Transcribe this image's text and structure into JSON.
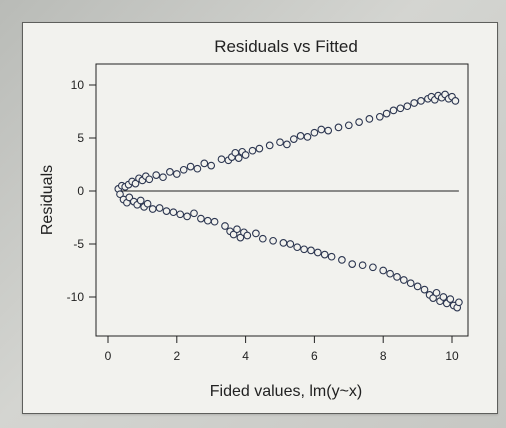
{
  "chart_data": {
    "type": "scatter",
    "title": "Residuals vs Fitted",
    "xlabel": "Fided values, lm(y~x)",
    "ylabel": "Residuals",
    "xlim": [
      0,
      10.5
    ],
    "ylim": [
      -12.5,
      12.5
    ],
    "xticks": [
      0,
      2,
      4,
      6,
      8,
      10
    ],
    "yticks": [
      10,
      5,
      0,
      -5,
      -10
    ],
    "reference_line": {
      "y": 0,
      "x_range": [
        0.3,
        10.2
      ]
    },
    "grid": false,
    "colors": {
      "marker_edge": "#2c3650",
      "marker_fill": "#f2f2ee",
      "line": "#222222"
    },
    "series": [
      {
        "points": [
          [
            0.3,
            0.2
          ],
          [
            0.35,
            -0.3
          ],
          [
            0.4,
            0.5
          ],
          [
            0.45,
            -0.8
          ],
          [
            0.5,
            0.4
          ],
          [
            0.55,
            -1.1
          ],
          [
            0.6,
            0.6
          ],
          [
            0.62,
            -0.6
          ],
          [
            0.7,
            0.9
          ],
          [
            0.75,
            -1.0
          ],
          [
            0.8,
            0.7
          ],
          [
            0.85,
            -1.3
          ],
          [
            0.9,
            1.2
          ],
          [
            0.95,
            -0.9
          ],
          [
            1.0,
            1.0
          ],
          [
            1.05,
            -1.5
          ],
          [
            1.1,
            1.4
          ],
          [
            1.15,
            -1.2
          ],
          [
            1.2,
            1.1
          ],
          [
            1.3,
            -1.7
          ],
          [
            1.4,
            1.5
          ],
          [
            1.5,
            -1.6
          ],
          [
            1.6,
            1.3
          ],
          [
            1.7,
            -1.9
          ],
          [
            1.8,
            1.8
          ],
          [
            1.9,
            -2.0
          ],
          [
            2.0,
            1.6
          ],
          [
            2.1,
            -2.2
          ],
          [
            2.2,
            2.0
          ],
          [
            2.3,
            -2.4
          ],
          [
            2.4,
            2.3
          ],
          [
            2.5,
            -2.1
          ],
          [
            2.6,
            2.1
          ],
          [
            2.7,
            -2.6
          ],
          [
            2.8,
            2.6
          ],
          [
            2.9,
            -2.8
          ],
          [
            3.0,
            2.4
          ],
          [
            3.1,
            -2.9
          ],
          [
            3.3,
            3.0
          ],
          [
            3.4,
            -3.3
          ],
          [
            3.5,
            2.9
          ],
          [
            3.55,
            -3.8
          ],
          [
            3.6,
            3.2
          ],
          [
            3.65,
            -4.1
          ],
          [
            3.7,
            3.6
          ],
          [
            3.75,
            -3.6
          ],
          [
            3.8,
            3.1
          ],
          [
            3.85,
            -4.4
          ],
          [
            3.9,
            3.7
          ],
          [
            3.95,
            -3.9
          ],
          [
            4.0,
            3.4
          ],
          [
            4.05,
            -4.2
          ],
          [
            4.2,
            3.8
          ],
          [
            4.3,
            -4.0
          ],
          [
            4.4,
            4.0
          ],
          [
            4.5,
            -4.5
          ],
          [
            4.7,
            4.3
          ],
          [
            4.8,
            -4.7
          ],
          [
            5.0,
            4.6
          ],
          [
            5.1,
            -4.9
          ],
          [
            5.2,
            4.4
          ],
          [
            5.3,
            -5.0
          ],
          [
            5.4,
            4.9
          ],
          [
            5.5,
            -5.3
          ],
          [
            5.6,
            5.2
          ],
          [
            5.7,
            -5.5
          ],
          [
            5.8,
            5.1
          ],
          [
            5.9,
            -5.6
          ],
          [
            6.0,
            5.5
          ],
          [
            6.1,
            -5.8
          ],
          [
            6.2,
            5.8
          ],
          [
            6.3,
            -6.0
          ],
          [
            6.4,
            5.7
          ],
          [
            6.5,
            -6.2
          ],
          [
            6.7,
            6.0
          ],
          [
            6.8,
            -6.5
          ],
          [
            7.0,
            6.2
          ],
          [
            7.1,
            -6.9
          ],
          [
            7.3,
            6.5
          ],
          [
            7.4,
            -7.0
          ],
          [
            7.6,
            6.8
          ],
          [
            7.7,
            -7.2
          ],
          [
            7.9,
            7.0
          ],
          [
            8.0,
            -7.5
          ],
          [
            8.1,
            7.3
          ],
          [
            8.2,
            -7.8
          ],
          [
            8.3,
            7.6
          ],
          [
            8.4,
            -8.1
          ],
          [
            8.5,
            7.8
          ],
          [
            8.6,
            -8.4
          ],
          [
            8.7,
            8.0
          ],
          [
            8.8,
            -8.7
          ],
          [
            8.9,
            8.3
          ],
          [
            9.0,
            -9.0
          ],
          [
            9.1,
            8.5
          ],
          [
            9.2,
            -9.3
          ],
          [
            9.3,
            8.7
          ],
          [
            9.35,
            -9.8
          ],
          [
            9.4,
            8.9
          ],
          [
            9.45,
            -10.1
          ],
          [
            9.5,
            8.6
          ],
          [
            9.55,
            -9.6
          ],
          [
            9.6,
            9.0
          ],
          [
            9.65,
            -10.4
          ],
          [
            9.7,
            8.8
          ],
          [
            9.75,
            -10.0
          ],
          [
            9.8,
            9.1
          ],
          [
            9.85,
            -10.6
          ],
          [
            9.9,
            8.7
          ],
          [
            9.95,
            -10.2
          ],
          [
            10.0,
            8.9
          ],
          [
            10.05,
            -10.8
          ],
          [
            10.1,
            8.5
          ],
          [
            10.15,
            -11.0
          ],
          [
            10.2,
            -10.5
          ]
        ]
      }
    ]
  }
}
